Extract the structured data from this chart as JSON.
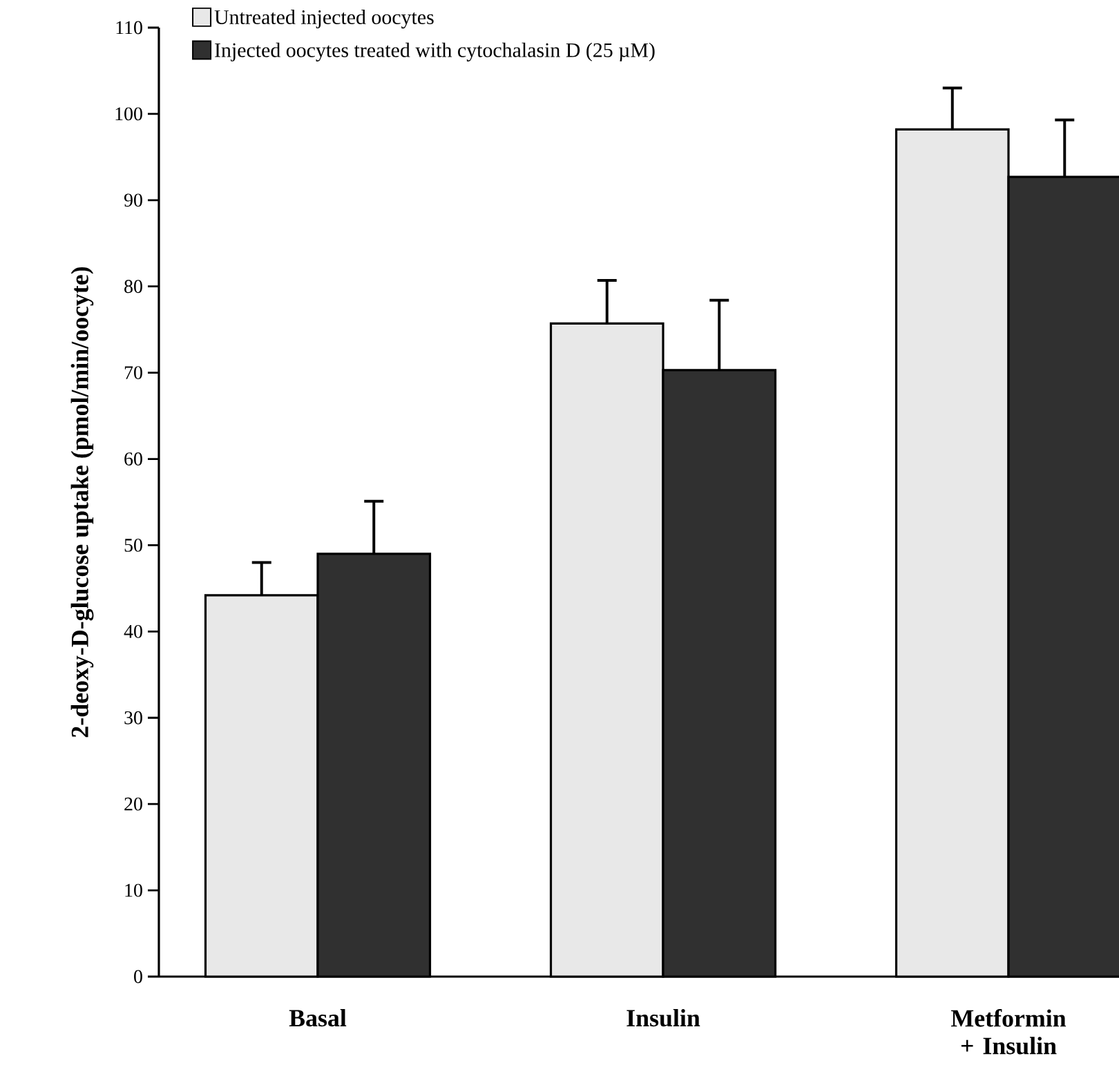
{
  "chart_data": {
    "type": "bar",
    "ylabel": "2-deoxy-D-glucose  uptake  (pmol/min/oocyte)",
    "categories": [
      "Basal",
      "Insulin",
      "Metformin + Insulin"
    ],
    "series": [
      {
        "name": "Untreated injected oocytes",
        "color": "#e8e8e8",
        "values": [
          44.2,
          75.7,
          98.2
        ],
        "errors": [
          [
            44.2,
            48.0
          ],
          [
            75.7,
            80.7
          ],
          [
            98.2,
            103.0
          ]
        ]
      },
      {
        "name": "Injected oocytes treated with cytochalasin D (25 µM)",
        "color": "#303030",
        "values": [
          49.0,
          70.3,
          92.7
        ],
        "errors": [
          [
            49.0,
            55.1
          ],
          [
            70.3,
            78.4
          ],
          [
            92.7,
            99.3
          ]
        ]
      }
    ],
    "ylim": [
      0,
      110
    ],
    "yticks": [
      0,
      10,
      20,
      30,
      40,
      50,
      60,
      70,
      80,
      90,
      100,
      110
    ],
    "legend": "top left",
    "grid": false
  }
}
